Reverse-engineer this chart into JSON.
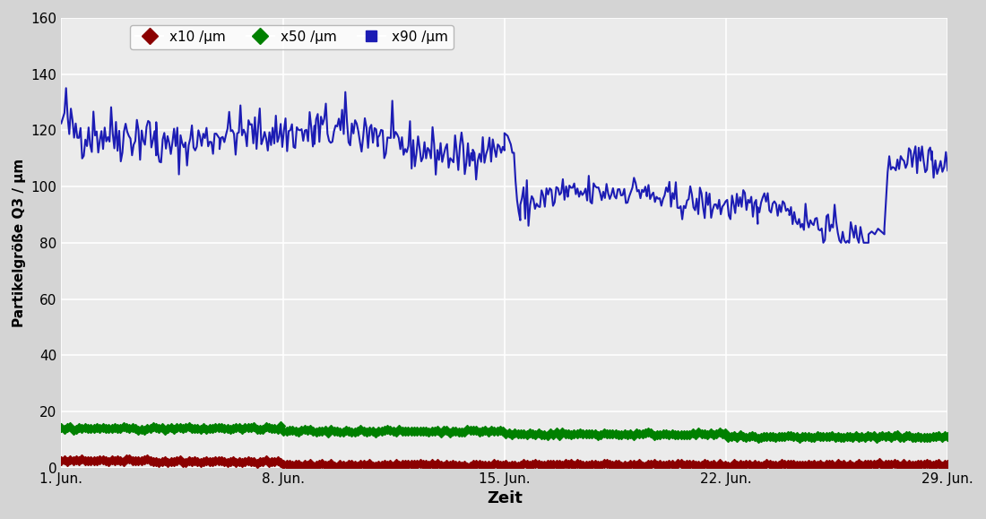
{
  "xlabel": "Zeit",
  "ylabel": "Partikelgröße Q3 / μm",
  "ylim": [
    0,
    160
  ],
  "yticks": [
    0,
    20,
    40,
    60,
    80,
    100,
    120,
    140,
    160
  ],
  "xlim_days": [
    0,
    28
  ],
  "x_tick_days": [
    0,
    7,
    14,
    21,
    28
  ],
  "x_tick_labels": [
    "1. Jun.",
    "8. Jun.",
    "15. Jun.",
    "22. Jun.",
    "29. Jun."
  ],
  "bg_color": "#D4D4D4",
  "plot_bg_color": "#EBEBEB",
  "grid_color": "#FFFFFF",
  "legend_entries": [
    "x10 /μm",
    "x50 /μm",
    "x90 /μm"
  ],
  "colors": {
    "x10": "#8B0000",
    "x50": "#008000",
    "x90": "#1C1CB4"
  }
}
